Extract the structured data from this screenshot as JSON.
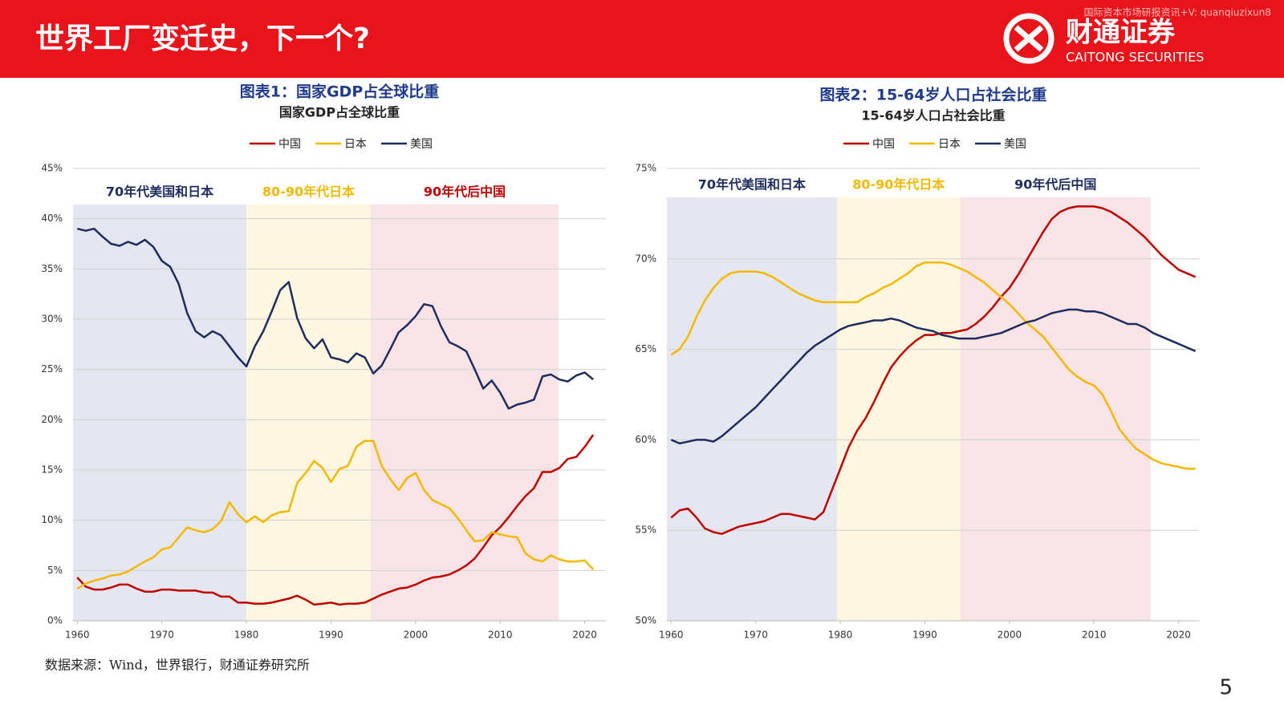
{
  "header": {
    "title": "世界工厂变迁史，下一个?",
    "watermark": "国际资本市场研报资讯+V: quanqiuzixun8",
    "logo_name": "财通证券",
    "logo_english": "CAITONG SECURITIES"
  },
  "source": "数据来源：Wind，世界银行，财通证券研究所",
  "page_number": "5",
  "chart_data": [
    {
      "type": "line",
      "title": "图表1：国家GDP占全球比重",
      "subtitle": "国家GDP占全球比重",
      "x": [
        1960,
        1961,
        1962,
        1963,
        1964,
        1965,
        1966,
        1967,
        1968,
        1969,
        1970,
        1971,
        1972,
        1973,
        1974,
        1975,
        1976,
        1977,
        1978,
        1979,
        1980,
        1981,
        1982,
        1983,
        1984,
        1985,
        1986,
        1987,
        1988,
        1989,
        1990,
        1991,
        1992,
        1993,
        1994,
        1995,
        1996,
        1997,
        1998,
        1999,
        2000,
        2001,
        2002,
        2003,
        2004,
        2005,
        2006,
        2007,
        2008,
        2009,
        2010,
        2011,
        2012,
        2013,
        2014,
        2015,
        2016,
        2017,
        2018,
        2019,
        2020,
        2021
      ],
      "series": [
        {
          "name": "中国",
          "color": "#c00000",
          "values": [
            4.3,
            3.4,
            3.1,
            3.1,
            3.3,
            3.6,
            3.6,
            3.2,
            2.9,
            2.9,
            3.1,
            3.1,
            3.0,
            3.0,
            3.0,
            2.8,
            2.8,
            2.4,
            2.4,
            1.8,
            1.8,
            1.7,
            1.7,
            1.8,
            2.0,
            2.2,
            2.5,
            2.1,
            1.6,
            1.7,
            1.8,
            1.6,
            1.7,
            1.7,
            1.8,
            2.2,
            2.6,
            2.9,
            3.2,
            3.3,
            3.6,
            4.0,
            4.3,
            4.4,
            4.6,
            5.0,
            5.5,
            6.2,
            7.3,
            8.5,
            9.3,
            10.3,
            11.4,
            12.4,
            13.2,
            14.8,
            14.8,
            15.2,
            16.1,
            16.3,
            17.3,
            18.5
          ]
        },
        {
          "name": "日本",
          "color": "#f5b800",
          "values": [
            3.2,
            3.7,
            4.0,
            4.2,
            4.5,
            4.6,
            4.9,
            5.4,
            5.9,
            6.3,
            7.1,
            7.3,
            8.3,
            9.3,
            9.0,
            8.8,
            9.1,
            9.9,
            11.8,
            10.6,
            9.8,
            10.4,
            9.8,
            10.5,
            10.8,
            10.9,
            13.7,
            14.7,
            15.9,
            15.2,
            13.8,
            15.1,
            15.4,
            17.3,
            17.9,
            17.9,
            15.4,
            14.1,
            13.0,
            14.2,
            14.7,
            13.0,
            12.0,
            11.6,
            11.2,
            10.2,
            9.0,
            7.9,
            8.0,
            8.8,
            8.6,
            8.4,
            8.3,
            6.7,
            6.1,
            5.9,
            6.5,
            6.1,
            5.9,
            5.9,
            6.0,
            5.1
          ]
        },
        {
          "name": "美国",
          "color": "#1f2d5e",
          "values": [
            39.0,
            38.8,
            39.0,
            38.2,
            37.5,
            37.3,
            37.7,
            37.4,
            37.9,
            37.2,
            35.8,
            35.2,
            33.5,
            30.6,
            28.8,
            28.2,
            28.8,
            28.4,
            27.3,
            26.2,
            25.3,
            27.3,
            28.8,
            30.8,
            32.9,
            33.7,
            30.1,
            28.1,
            27.1,
            28.0,
            26.2,
            26.0,
            25.7,
            26.6,
            26.2,
            24.6,
            25.4,
            27.0,
            28.7,
            29.4,
            30.3,
            31.5,
            31.3,
            29.3,
            27.7,
            27.3,
            26.8,
            25.0,
            23.1,
            23.9,
            22.7,
            21.1,
            21.5,
            21.7,
            22.0,
            24.3,
            24.5,
            24.0,
            23.8,
            24.4,
            24.7,
            24.0
          ]
        }
      ],
      "regions": [
        {
          "label": "70年代美国和日本",
          "start": 1959.5,
          "end": 1980,
          "color": "#e4e7f0",
          "label_color": "#1f2d5e"
        },
        {
          "label": "80-90年代日本",
          "start": 1980,
          "end": 1994.7,
          "color": "#fdf7e1",
          "label_color": "#f5b800"
        },
        {
          "label": "90年代后中国",
          "start": 1994.7,
          "end": 2016.9,
          "color": "#f8e4e6",
          "label_color": "#c00000"
        }
      ],
      "xlim": [
        1959.5,
        2022.5
      ],
      "xticks": [
        1960,
        1970,
        1980,
        1990,
        2000,
        2010,
        2020
      ],
      "ylim": [
        0,
        45
      ],
      "yticks": [
        {
          "value": 0,
          "label": "0%"
        },
        {
          "value": 5,
          "label": "5%"
        },
        {
          "value": 10,
          "label": "10%"
        },
        {
          "value": 15,
          "label": "15%"
        },
        {
          "value": 20,
          "label": "20%"
        },
        {
          "value": 25,
          "label": "25%"
        },
        {
          "value": 30,
          "label": "30%"
        },
        {
          "value": 35,
          "label": "35%"
        },
        {
          "value": 40,
          "label": "40%"
        },
        {
          "value": 45,
          "label": "45%"
        }
      ],
      "grid": true,
      "legend": "top"
    },
    {
      "type": "line",
      "title": "图表2：15-64岁人口占社会比重",
      "subtitle": "15-64岁人口占社会比重",
      "x": [
        1960,
        1961,
        1962,
        1963,
        1964,
        1965,
        1966,
        1967,
        1968,
        1969,
        1970,
        1971,
        1972,
        1973,
        1974,
        1975,
        1976,
        1977,
        1978,
        1979,
        1980,
        1981,
        1982,
        1983,
        1984,
        1985,
        1986,
        1987,
        1988,
        1989,
        1990,
        1991,
        1992,
        1993,
        1994,
        1995,
        1996,
        1997,
        1998,
        1999,
        2000,
        2001,
        2002,
        2003,
        2004,
        2005,
        2006,
        2007,
        2008,
        2009,
        2010,
        2011,
        2012,
        2013,
        2014,
        2015,
        2016,
        2017,
        2018,
        2019,
        2020,
        2021,
        2022
      ],
      "series": [
        {
          "name": "中国",
          "color": "#c00000",
          "values": [
            55.7,
            56.1,
            56.2,
            55.7,
            55.1,
            54.9,
            54.8,
            55.0,
            55.2,
            55.3,
            55.4,
            55.5,
            55.7,
            55.9,
            55.9,
            55.8,
            55.7,
            55.6,
            56.0,
            57.2,
            58.4,
            59.6,
            60.5,
            61.2,
            62.1,
            63.1,
            64.0,
            64.6,
            65.1,
            65.5,
            65.8,
            65.8,
            65.9,
            65.9,
            66.0,
            66.1,
            66.4,
            66.8,
            67.3,
            67.9,
            68.4,
            69.1,
            69.9,
            70.7,
            71.5,
            72.2,
            72.6,
            72.8,
            72.9,
            72.9,
            72.9,
            72.8,
            72.6,
            72.3,
            72.0,
            71.6,
            71.2,
            70.7,
            70.2,
            69.8,
            69.4,
            69.2,
            69.0
          ]
        },
        {
          "name": "日本",
          "color": "#f5b800",
          "values": [
            64.7,
            65.0,
            65.7,
            66.8,
            67.7,
            68.4,
            68.9,
            69.2,
            69.3,
            69.3,
            69.3,
            69.2,
            69.0,
            68.7,
            68.4,
            68.1,
            67.9,
            67.7,
            67.6,
            67.6,
            67.6,
            67.6,
            67.6,
            67.9,
            68.1,
            68.4,
            68.6,
            68.9,
            69.2,
            69.6,
            69.8,
            69.8,
            69.8,
            69.7,
            69.5,
            69.3,
            69.0,
            68.7,
            68.3,
            67.9,
            67.5,
            67.0,
            66.5,
            66.1,
            65.7,
            65.1,
            64.5,
            63.9,
            63.5,
            63.2,
            63.0,
            62.5,
            61.6,
            60.6,
            60.0,
            59.5,
            59.2,
            58.9,
            58.7,
            58.6,
            58.5,
            58.4,
            58.4
          ]
        },
        {
          "name": "美国",
          "color": "#1f2d5e",
          "values": [
            60.0,
            59.8,
            59.9,
            60.0,
            60.0,
            59.9,
            60.2,
            60.6,
            61.0,
            61.4,
            61.8,
            62.3,
            62.8,
            63.3,
            63.8,
            64.3,
            64.8,
            65.2,
            65.5,
            65.8,
            66.1,
            66.3,
            66.4,
            66.5,
            66.6,
            66.6,
            66.7,
            66.6,
            66.4,
            66.2,
            66.1,
            66.0,
            65.8,
            65.7,
            65.6,
            65.6,
            65.6,
            65.7,
            65.8,
            65.9,
            66.1,
            66.3,
            66.5,
            66.6,
            66.8,
            67.0,
            67.1,
            67.2,
            67.2,
            67.1,
            67.1,
            67.0,
            66.8,
            66.6,
            66.4,
            66.4,
            66.2,
            65.9,
            65.7,
            65.5,
            65.3,
            65.1,
            64.9
          ]
        }
      ],
      "regions": [
        {
          "label": "70年代美国和日本",
          "start": 1959.5,
          "end": 1979.6,
          "color": "#e4e7f0",
          "label_color": "#1f2d5e"
        },
        {
          "label": "80-90年代日本",
          "start": 1979.6,
          "end": 1994.2,
          "color": "#fdf7e1",
          "label_color": "#f5b800"
        },
        {
          "label": "90年代后中国",
          "start": 1994.2,
          "end": 2016.7,
          "color": "#f8e4e6",
          "label_color": "#1f2d5e"
        }
      ],
      "xlim": [
        1959.5,
        2022.5
      ],
      "xticks": [
        1960,
        1970,
        1980,
        1990,
        2000,
        2010,
        2020
      ],
      "ylim": [
        50,
        75
      ],
      "yticks": [
        {
          "value": 50,
          "label": "50%"
        },
        {
          "value": 55,
          "label": "55%"
        },
        {
          "value": 60,
          "label": "60%"
        },
        {
          "value": 65,
          "label": "65%"
        },
        {
          "value": 70,
          "label": "70%"
        },
        {
          "value": 75,
          "label": "75%"
        }
      ],
      "grid": true,
      "legend": "top"
    }
  ]
}
